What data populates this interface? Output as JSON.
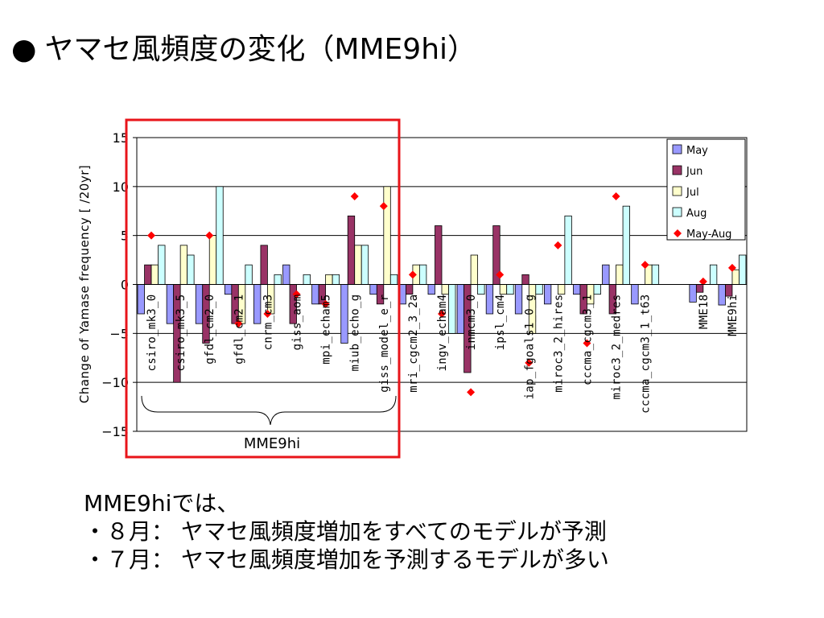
{
  "title": {
    "bullet": "●",
    "text": "ヤマセ風頻度の変化（MME9hi）"
  },
  "notes": {
    "heading": "MME9hiでは、",
    "points": [
      "・８月：  ヤマセ風頻度増加をすべてのモデルが予測",
      "・７月：  ヤマセ風頻度増加を予測するモデルが多い"
    ]
  },
  "highlight": {
    "label": "MME9hi",
    "color": "#e8141a"
  },
  "chart_data": {
    "type": "bar",
    "ylabel": "Change of Yamase frequency [ /20yr]",
    "ylim": [
      -15,
      15
    ],
    "yticks": [
      15,
      10,
      5,
      0,
      -5,
      -10,
      -15
    ],
    "ytick_labels": [
      "15",
      "10",
      "5",
      "0",
      "−5",
      "−10",
      "−15"
    ],
    "grid": true,
    "legend_position": "top-right",
    "categories": [
      "csiro_mk3_0",
      "csiro_mk3_5",
      "gfdl_cm2_0",
      "gfdl_cm2_1",
      "cnrm_cm3",
      "giss_aom",
      "mpi_echam5",
      "miub_echo_g",
      "giss_model_e_r",
      "mri_cgcm2_3_2a",
      "ingv_echam4",
      "inmcm3_0",
      "ipsl_cm4",
      "iap_fgoals1_0_g",
      "miroc3_2_hires",
      "cccma_cgcm3_1",
      "miroc3_2_medres",
      "cccma_cgcm3_1_t63",
      "",
      "MME18",
      "MME9hi"
    ],
    "series": [
      {
        "name": "May",
        "color": "#9999ff",
        "values": [
          -3,
          -4,
          -4,
          -1,
          -4,
          2,
          -2,
          -6,
          -1,
          -2,
          -1,
          -5,
          -3,
          -3,
          -2,
          -1,
          2,
          -2,
          null,
          -1.8,
          -2.1
        ]
      },
      {
        "name": "Jun",
        "color": "#993366",
        "values": [
          2,
          -10,
          -6,
          -4,
          4,
          -4,
          -2,
          7,
          -2,
          -1,
          6,
          -9,
          6,
          1,
          0,
          -3,
          -3,
          0,
          null,
          -0.8,
          -1.2
        ]
      },
      {
        "name": "Jul",
        "color": "#ffffcc",
        "values": [
          2,
          4,
          5,
          -4,
          -3,
          0,
          1,
          4,
          10,
          2,
          -1,
          3,
          -1,
          -5,
          -1,
          -2,
          2,
          2,
          null,
          0,
          1.5
        ]
      },
      {
        "name": "Aug",
        "color": "#ccffff",
        "values": [
          4,
          3,
          10,
          2,
          1,
          1,
          1,
          4,
          1,
          2,
          -5,
          -1,
          -1,
          -1,
          7,
          -1,
          8,
          2,
          null,
          2,
          3
        ]
      },
      {
        "name": "May-Aug",
        "color": "#ff0000",
        "marker": "diamond",
        "values": [
          5,
          null,
          5,
          -4,
          -3,
          -1,
          -2,
          9,
          8,
          1,
          -3,
          -11,
          1,
          -8,
          4,
          -6,
          9,
          2,
          null,
          0.3,
          1.7
        ]
      }
    ]
  }
}
